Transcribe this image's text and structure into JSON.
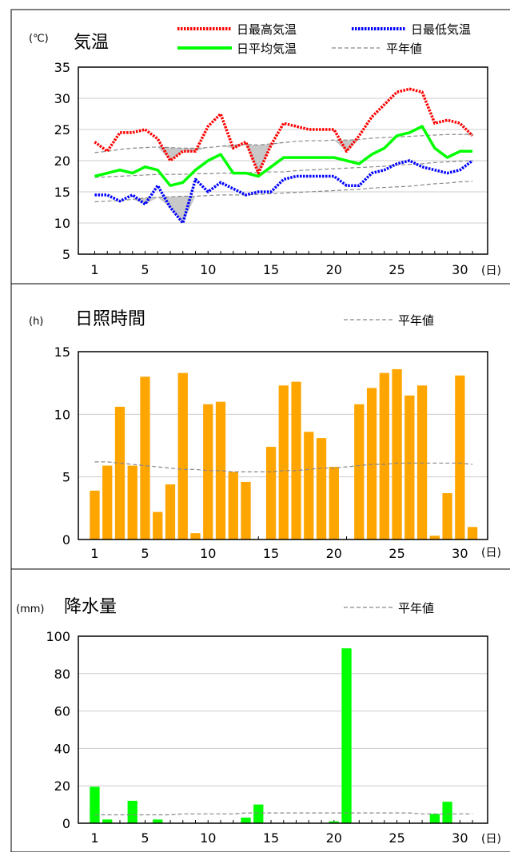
{
  "chart_data": [
    {
      "type": "line",
      "unit": "(℃)",
      "title": "気温",
      "xunit": "(日)",
      "x": [
        1,
        2,
        3,
        4,
        5,
        6,
        7,
        8,
        9,
        10,
        11,
        12,
        13,
        14,
        15,
        16,
        17,
        18,
        19,
        20,
        21,
        22,
        23,
        24,
        25,
        26,
        27,
        28,
        29,
        30,
        31
      ],
      "xticks": [
        1,
        5,
        10,
        15,
        20,
        25,
        30
      ],
      "ylim": [
        5,
        35
      ],
      "yticks": [
        5,
        10,
        15,
        20,
        25,
        30,
        35
      ],
      "series": [
        {
          "name": "日最高気温",
          "color": "#ff0000",
          "style": "dotted",
          "values": [
            23,
            21.5,
            24.5,
            24.5,
            25,
            23.5,
            20,
            21.5,
            21.5,
            25.5,
            27.5,
            22,
            23,
            18,
            22.5,
            26,
            25.5,
            25,
            25,
            25,
            21.5,
            24,
            27,
            29,
            31,
            31.5,
            31,
            26,
            26.5,
            26,
            24
          ]
        },
        {
          "name": "日最低気温",
          "color": "#0000ff",
          "style": "dotted",
          "values": [
            14.5,
            14.5,
            13.5,
            14.5,
            13,
            16,
            12.5,
            10,
            17,
            15,
            16.5,
            15.5,
            14.5,
            15,
            15,
            17,
            17.5,
            17.5,
            17.5,
            17.5,
            16,
            16,
            18,
            18.5,
            19.5,
            20,
            19,
            18.5,
            18,
            18.5,
            20
          ]
        },
        {
          "name": "日平均気温",
          "color": "#00ff00",
          "style": "solid",
          "values": [
            17.5,
            18,
            18.5,
            18,
            19,
            18.5,
            16,
            16.5,
            18.5,
            20,
            21,
            18,
            18,
            17.5,
            19,
            20.5,
            20.5,
            20.5,
            20.5,
            20.5,
            20,
            19.5,
            21,
            22,
            24,
            24.5,
            25.5,
            22,
            20.5,
            21.5,
            21.5
          ]
        },
        {
          "name": "平年値",
          "color": "#888888",
          "style": "dashed",
          "values": [
            21.3,
            21.5,
            21.8,
            22,
            22.1,
            22.2,
            22.1,
            22.0,
            22.0,
            22.1,
            22.3,
            22.5,
            22.6,
            22.5,
            22.7,
            22.9,
            23.1,
            23.2,
            23.2,
            23.3,
            23.3,
            23.4,
            23.6,
            23.7,
            23.8,
            23.9,
            24.0,
            24.1,
            24.2,
            24.2,
            24.3
          ]
        },
        {
          "name": "",
          "color": "#888888",
          "style": "dashed",
          "values": [
            17.3,
            17.4,
            17.5,
            17.6,
            17.7,
            17.8,
            17.8,
            17.8,
            17.9,
            17.9,
            18.0,
            18.0,
            18.1,
            18.1,
            18.2,
            18.2,
            18.4,
            18.5,
            18.6,
            18.7,
            18.8,
            18.9,
            19.0,
            19.1,
            19.3,
            19.4,
            19.5,
            19.7,
            19.8,
            19.9,
            20.0
          ]
        },
        {
          "name": "",
          "color": "#888888",
          "style": "dashed",
          "values": [
            13.4,
            13.5,
            13.6,
            13.8,
            14.0,
            14.1,
            14.2,
            14.3,
            14.3,
            14.4,
            14.5,
            14.5,
            14.5,
            14.6,
            14.7,
            14.8,
            14.9,
            15.0,
            15.1,
            15.2,
            15.3,
            15.4,
            15.6,
            15.7,
            15.8,
            15.9,
            16.1,
            16.3,
            16.4,
            16.6,
            16.7
          ]
        }
      ],
      "legend": [
        {
          "label": "日最高気温",
          "color": "#ff0000",
          "style": "dotted"
        },
        {
          "label": "日最低気温",
          "color": "#0000ff",
          "style": "dotted"
        },
        {
          "label": "日平均気温",
          "color": "#00ff00",
          "style": "solid"
        },
        {
          "label": "平年値",
          "color": "#888888",
          "style": "dashed"
        }
      ],
      "shade_color": "#c8c8c8",
      "grid": true
    },
    {
      "type": "bar",
      "unit": "(h)",
      "title": "日照時間",
      "xunit": "(日)",
      "x": [
        1,
        2,
        3,
        4,
        5,
        6,
        7,
        8,
        9,
        10,
        11,
        12,
        13,
        14,
        15,
        16,
        17,
        18,
        19,
        20,
        21,
        22,
        23,
        24,
        25,
        26,
        27,
        28,
        29,
        30,
        31
      ],
      "xticks": [
        1,
        5,
        10,
        15,
        20,
        25,
        30
      ],
      "ylim": [
        0,
        15
      ],
      "yticks": [
        0,
        5,
        10,
        15
      ],
      "bar_color": "#ffa500",
      "values": [
        3.9,
        5.9,
        10.6,
        5.9,
        13.0,
        2.2,
        4.4,
        13.3,
        0.5,
        10.8,
        11.0,
        5.4,
        4.6,
        0,
        7.4,
        12.3,
        12.6,
        8.6,
        8.1,
        5.8,
        0,
        10.8,
        12.1,
        13.3,
        13.6,
        11.5,
        12.3,
        0.3,
        3.7,
        13.1,
        1.0
      ],
      "normal": {
        "label": "平年値",
        "color": "#888888",
        "values": [
          6.2,
          6.2,
          6.1,
          6.0,
          5.9,
          5.8,
          5.7,
          5.6,
          5.6,
          5.5,
          5.5,
          5.4,
          5.4,
          5.4,
          5.4,
          5.5,
          5.5,
          5.6,
          5.7,
          5.7,
          5.8,
          5.9,
          6.0,
          6.0,
          6.1,
          6.1,
          6.1,
          6.1,
          6.1,
          6.1,
          6.0
        ]
      },
      "grid": true
    },
    {
      "type": "bar",
      "unit": "(mm)",
      "title": "降水量",
      "xunit": "(日)",
      "x": [
        1,
        2,
        3,
        4,
        5,
        6,
        7,
        8,
        9,
        10,
        11,
        12,
        13,
        14,
        15,
        16,
        17,
        18,
        19,
        20,
        21,
        22,
        23,
        24,
        25,
        26,
        27,
        28,
        29,
        30,
        31
      ],
      "xticks": [
        1,
        5,
        10,
        15,
        20,
        25,
        30
      ],
      "ylim": [
        0,
        100
      ],
      "yticks": [
        0,
        20,
        40,
        60,
        80,
        100
      ],
      "bar_color": "#00ff00",
      "values": [
        19.5,
        2,
        0,
        12,
        0,
        2,
        0,
        0,
        0,
        0,
        0,
        0,
        3,
        10,
        0,
        0,
        0,
        0,
        0,
        1,
        93.5,
        0,
        0,
        0,
        0,
        0,
        0,
        5,
        11.5,
        0,
        0
      ],
      "normal": {
        "label": "平年値",
        "color": "#888888",
        "values": [
          4.5,
          4.5,
          4.5,
          4.5,
          4.5,
          4.5,
          4.5,
          5,
          5,
          5,
          5,
          5,
          5.5,
          5.5,
          5.5,
          5.5,
          5.5,
          5.5,
          5.5,
          5.5,
          5.5,
          5.5,
          5.5,
          5.5,
          5.5,
          5.5,
          5,
          5,
          5,
          5,
          5
        ]
      },
      "grid": true
    }
  ]
}
